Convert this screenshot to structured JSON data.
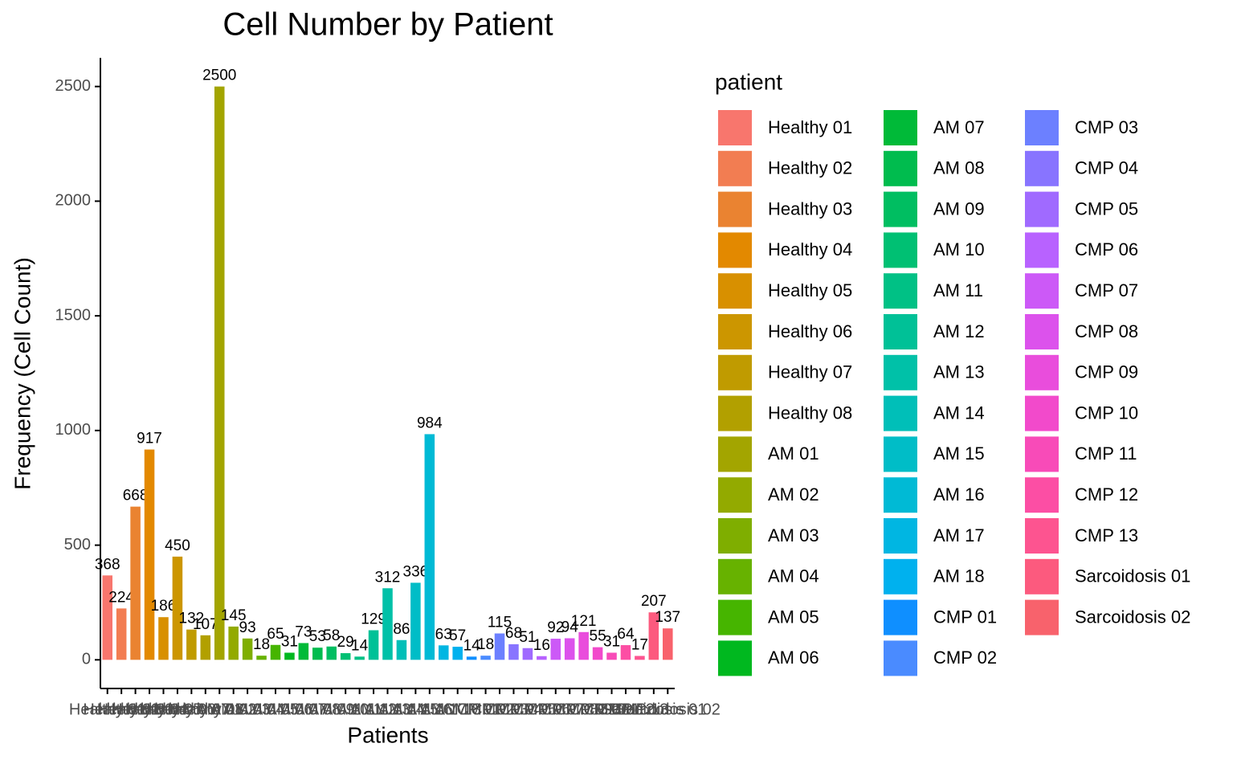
{
  "chart_data": {
    "type": "bar",
    "title": "Cell Number by Patient",
    "xlabel": "Patients",
    "ylabel": "Frequency (Cell Count)",
    "legend_title": "patient",
    "categories": [
      "Healthy 01",
      "Healthy 02",
      "Healthy 03",
      "Healthy 04",
      "Healthy 05",
      "Healthy 06",
      "Healthy 07",
      "Healthy 08",
      "AM 01",
      "AM 02",
      "AM 03",
      "AM 04",
      "AM 05",
      "AM 06",
      "AM 07",
      "AM 08",
      "AM 09",
      "AM 10",
      "AM 11",
      "AM 12",
      "AM 13",
      "AM 14",
      "AM 15",
      "AM 16",
      "AM 17",
      "AM 18",
      "CMP 01",
      "CMP 02",
      "CMP 03",
      "CMP 04",
      "CMP 05",
      "CMP 06",
      "CMP 07",
      "CMP 08",
      "CMP 09",
      "CMP 10",
      "CMP 11",
      "CMP 12",
      "CMP 13",
      "Sarcoidosis 01",
      "Sarcoidosis 02"
    ],
    "values": [
      368,
      224,
      668,
      917,
      186,
      450,
      132,
      107,
      2500,
      145,
      93,
      18,
      65,
      31,
      73,
      53,
      58,
      29,
      14,
      129,
      312,
      86,
      336,
      984,
      63,
      57,
      14,
      18,
      115,
      68,
      51,
      16,
      92,
      94,
      121,
      55,
      31,
      64,
      17,
      207,
      137
    ],
    "colors": [
      "#F8766D",
      "#F27D52",
      "#EA8331",
      "#E38900",
      "#D89000",
      "#CC9600",
      "#C09B00",
      "#B2A000",
      "#A3A500",
      "#93AA00",
      "#7FAE00",
      "#67B200",
      "#46B500",
      "#00B81F",
      "#00BA38",
      "#00BC4E",
      "#00BE61",
      "#00C073",
      "#00C185",
      "#00C197",
      "#00C1A8",
      "#00BFB8",
      "#00BDC7",
      "#00BAD5",
      "#00B6E2",
      "#00B1EE",
      "#0F8FFF",
      "#4A8BFF",
      "#6C80FF",
      "#8874FF",
      "#A06AFF",
      "#B862FF",
      "#CC59F7",
      "#DC52EC",
      "#E94DDC",
      "#F24ACB",
      "#F84BB8",
      "#FC4EA4",
      "#FD5490",
      "#FC5A7E",
      "#F8626C"
    ],
    "ylim": [
      -125,
      2625
    ],
    "yticks": [
      0,
      500,
      1000,
      1500,
      2000,
      2500
    ],
    "legend_columns": 3
  }
}
